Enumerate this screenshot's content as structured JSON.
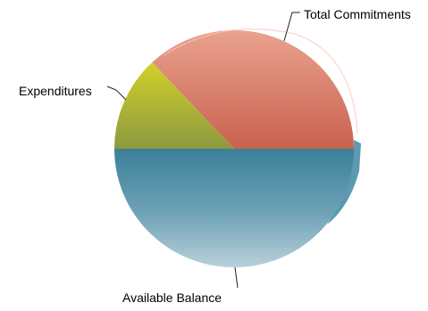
{
  "chart_data": {
    "type": "pie",
    "title": "",
    "slices": [
      {
        "label": "Total Commitments",
        "value": 37,
        "color": "#d9786a"
      },
      {
        "label": "Expenditures",
        "value": 13,
        "color": "#aab52e"
      },
      {
        "label": "Available Balance",
        "value": 50,
        "color": "#4a8fa8"
      }
    ],
    "legend": "none",
    "labels_position": "outside-with-leader-lines"
  }
}
